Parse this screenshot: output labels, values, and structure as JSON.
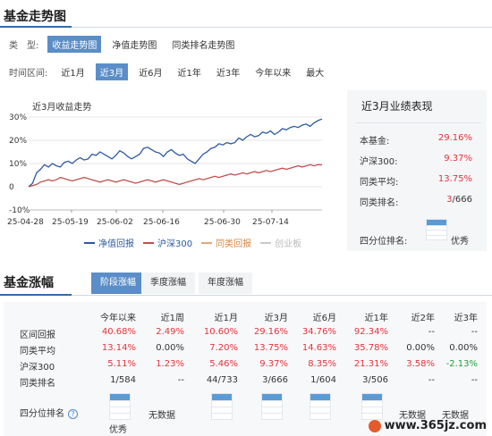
{
  "trend": {
    "title": "基金走势图",
    "type_label": "类　型:",
    "type_options": [
      "收益走势图",
      "净值走势图",
      "同类排名走势图"
    ],
    "type_active": 0,
    "range_label": "时间区间:",
    "range_options": [
      "近1月",
      "近3月",
      "近6月",
      "近1年",
      "近3年",
      "今年以来",
      "最大"
    ],
    "range_active": 1
  },
  "chart_data": {
    "type": "line",
    "title": "近3月收益走势",
    "ylim": [
      -10,
      30
    ],
    "yticks": [
      "30%",
      "20%",
      "10%",
      "0",
      "-10%"
    ],
    "x_ticks": [
      "25-04-28",
      "25-05-19",
      "25-06-02",
      "25-06-16",
      "25-06-30",
      "25-07-14"
    ],
    "grid": true,
    "legend": "bottom",
    "series": [
      {
        "name": "净值回报",
        "color": "#2c5aa0",
        "values": [
          0,
          1.5,
          6,
          7.5,
          9.5,
          8.5,
          10,
          9,
          8.5,
          10.5,
          11,
          10,
          11.5,
          12.5,
          11.5,
          12,
          14,
          13.5,
          15,
          14,
          13,
          12,
          13.5,
          15.5,
          14.5,
          13,
          12,
          13,
          14,
          16.5,
          17,
          16,
          15,
          14.5,
          13,
          15,
          16,
          14.5,
          13.5,
          14,
          12,
          11,
          10,
          12,
          14,
          15,
          16.5,
          17,
          18.5,
          18,
          19,
          18.5,
          19,
          21,
          20,
          21.5,
          22.5,
          21.5,
          22,
          23.5,
          23,
          24,
          22.5,
          23.5,
          25,
          24.5,
          25.5,
          26,
          25.5,
          26.5,
          27,
          26,
          27.5,
          28.5,
          29.16
        ]
      },
      {
        "name": "沪深300",
        "color": "#c0504d",
        "values": [
          0,
          0.5,
          1,
          2,
          2.5,
          3,
          2.5,
          3,
          4,
          3.5,
          3,
          2.5,
          3,
          3.5,
          4,
          3.5,
          3,
          2.5,
          2,
          2.5,
          3,
          2.5,
          2,
          2.5,
          3,
          2.5,
          2,
          1.5,
          2,
          2.5,
          3,
          2.5,
          2,
          2.5,
          3,
          2.5,
          2,
          1.5,
          1,
          1.5,
          2,
          2.5,
          3,
          3.5,
          3,
          3.5,
          4,
          4.5,
          4,
          4.5,
          5,
          5.5,
          5,
          5.5,
          6,
          5.5,
          6,
          6.5,
          6,
          6.5,
          7,
          6.5,
          7,
          7.5,
          8,
          7.5,
          8,
          8.5,
          9,
          8.5,
          9,
          9.5,
          9,
          9.5,
          9.37
        ]
      },
      {
        "name": "同类回报",
        "color": "#e0a875",
        "values": []
      },
      {
        "name": "创业板",
        "color": "#c8c8c8",
        "values": []
      }
    ]
  },
  "perf": {
    "title": "近3月业绩表现",
    "rows": [
      {
        "label": "本基金:",
        "value": "29.16%"
      },
      {
        "label": "沪深300:",
        "value": "9.37%"
      },
      {
        "label": "同类平均:",
        "value": "13.75%"
      },
      {
        "label": "同类排名:",
        "value_red": "3",
        "value_rest": "/666"
      }
    ],
    "quartile_label": "四分位排名:",
    "quartile_value": "优秀",
    "quartile_level": 1.0
  },
  "gain": {
    "title": "基金涨幅",
    "tabs": [
      "阶段涨幅",
      "季度涨幅",
      "年度涨幅"
    ],
    "tab_active": 0,
    "columns": [
      "今年以来",
      "近1周",
      "近1月",
      "近3月",
      "近6月",
      "近1年",
      "近2年",
      "近3年"
    ],
    "rows": [
      {
        "label": "区间回报",
        "cells": [
          [
            "40.68%",
            "red"
          ],
          [
            "2.49%",
            "red"
          ],
          [
            "10.60%",
            "red"
          ],
          [
            "29.16%",
            "red"
          ],
          [
            "34.76%",
            "red"
          ],
          [
            "92.34%",
            "red"
          ],
          [
            "--",
            "black"
          ],
          [
            "--",
            "black"
          ]
        ]
      },
      {
        "label": "同类平均",
        "cells": [
          [
            "13.14%",
            "red"
          ],
          [
            "0.00%",
            "black"
          ],
          [
            "7.20%",
            "red"
          ],
          [
            "13.75%",
            "red"
          ],
          [
            "14.63%",
            "red"
          ],
          [
            "35.78%",
            "red"
          ],
          [
            "0.00%",
            "black"
          ],
          [
            "0.00%",
            "black"
          ]
        ]
      },
      {
        "label": "沪深300",
        "cells": [
          [
            "5.11%",
            "red"
          ],
          [
            "1.23%",
            "red"
          ],
          [
            "5.46%",
            "red"
          ],
          [
            "9.37%",
            "red"
          ],
          [
            "8.35%",
            "red"
          ],
          [
            "21.31%",
            "red"
          ],
          [
            "3.58%",
            "red"
          ],
          [
            "-2.13%",
            "green"
          ]
        ]
      },
      {
        "label": "同类排名",
        "cells": [
          [
            "1/584",
            "black"
          ],
          [
            "--",
            "black"
          ],
          [
            "44/733",
            "black"
          ],
          [
            "3/666",
            "black"
          ],
          [
            "1/604",
            "black"
          ],
          [
            "3/506",
            "black"
          ],
          [
            "--",
            "black"
          ],
          [
            "--",
            "black"
          ]
        ]
      }
    ],
    "quartile_label": "四分位排名",
    "help_glyph": "?",
    "quartiles": [
      {
        "value": "优秀",
        "level": 1.0
      },
      {
        "value": "无数据",
        "level": null
      },
      {
        "value": "",
        "level": 1.0
      },
      {
        "value": "",
        "level": 1.0
      },
      {
        "value": "",
        "level": 1.0
      },
      {
        "value": "",
        "level": 1.0
      },
      {
        "value": "无数据",
        "level": null
      },
      {
        "value": "无数据",
        "level": null
      }
    ]
  },
  "watermark": {
    "text": "www.365jz.com"
  }
}
